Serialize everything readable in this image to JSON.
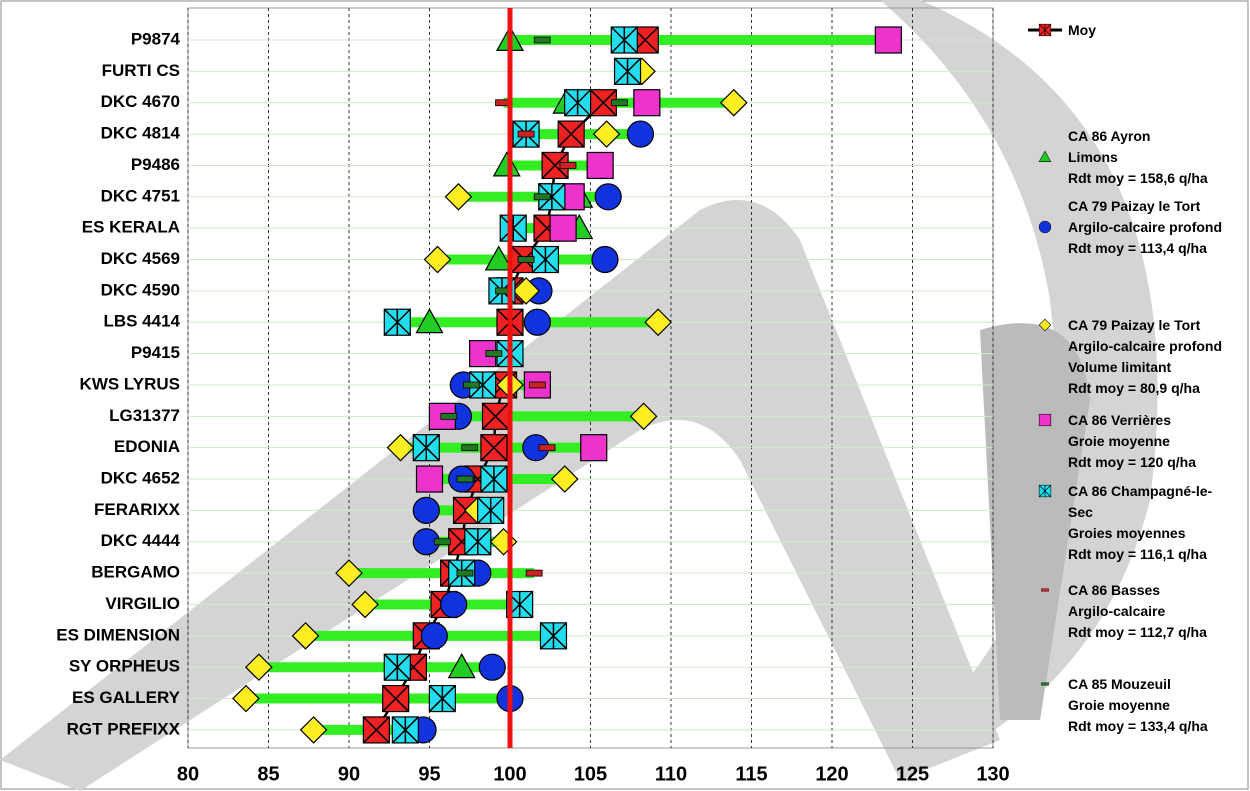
{
  "chart_data": {
    "type": "dotrange",
    "categories": [
      "P9874",
      "FURTI CS",
      "DKC 4670",
      "DKC 4814",
      "P9486",
      "DKC 4751",
      "ES KERALA",
      "DKC 4569",
      "DKC 4590",
      "LBS 4414",
      "P9415",
      "KWS LYRUS",
      "LG31377",
      "EDONIA",
      "DKC 4652",
      "FERARIXX",
      "DKC 4444",
      "BERGAMO",
      "VIRGILIO",
      "ES DIMENSION",
      "SY ORPHEUS",
      "ES GALLERY",
      "RGT PREFIXX"
    ],
    "xlim": [
      80,
      130
    ],
    "xticks": [
      80,
      85,
      90,
      95,
      100,
      105,
      110,
      115,
      120,
      125,
      130
    ],
    "grid": true,
    "reference": 100,
    "range_color": "#33ee22",
    "series": [
      {
        "name": "Moy",
        "marker": "xsquare",
        "color": "#ee2222",
        "line": true,
        "values": [
          108.4,
          null,
          105.8,
          103.8,
          102.8,
          102.6,
          102.3,
          100.9,
          100,
          100,
          null,
          99.6,
          99.1,
          99,
          98,
          97.3,
          97,
          96.5,
          95.9,
          94.8,
          94,
          92.9,
          91.7
        ]
      },
      {
        "name": "CA 86 Ayron\nLimons\nRdt moy = 158,6 q/ha",
        "marker": "triangle",
        "color": "#22cc22",
        "values": [
          100,
          null,
          103.5,
          null,
          99.8,
          104.3,
          104.3,
          99.3,
          null,
          95,
          null,
          null,
          null,
          null,
          null,
          null,
          null,
          null,
          null,
          null,
          97,
          null,
          null
        ]
      },
      {
        "name": "CA 79 Paizay le Tort\nArgilo-calcaire profond\nRdt moy = 113,4 q/ha",
        "marker": "circle",
        "color": "#1133dd",
        "values": [
          null,
          null,
          null,
          108.1,
          null,
          106.1,
          null,
          105.9,
          101.8,
          101.7,
          null,
          97.1,
          96.8,
          101.6,
          97,
          94.8,
          94.8,
          98,
          96.5,
          95.3,
          98.9,
          100,
          94.6
        ]
      },
      {
        "name": "CA 79 Paizay le Tort\nArgilo-calcaire profond\nVolume limitant\nRdt moy = 80,9 q/ha",
        "marker": "diamond",
        "color": "#ffee22",
        "values": [
          null,
          108.2,
          113.9,
          106,
          null,
          96.8,
          null,
          95.5,
          101,
          109.2,
          null,
          100,
          108.3,
          93.2,
          103.4,
          98,
          99.6,
          90,
          91,
          87.3,
          84.4,
          83.6,
          87.8
        ]
      },
      {
        "name": "CA 86 Verrières\nGroie moyenne\nRdt moy = 120 q/ha",
        "marker": "square",
        "color": "#ee33cc",
        "values": [
          123.5,
          null,
          108.5,
          null,
          105.6,
          103.8,
          103.3,
          null,
          null,
          null,
          98.3,
          101.7,
          95.8,
          105.2,
          95,
          null,
          null,
          null,
          null,
          null,
          null,
          null,
          null
        ]
      },
      {
        "name": "CA 86 Champagné-le-\nSec\nGroies moyennes\nRdt moy = 116,1 q/ha",
        "marker": "xcross",
        "color": "#22ddee",
        "values": [
          107.1,
          107.3,
          104.2,
          101,
          null,
          102.6,
          100.2,
          102.2,
          99.5,
          93,
          100,
          98.3,
          null,
          94.8,
          99,
          98.8,
          98,
          97,
          100.6,
          102.7,
          93,
          95.8,
          93.5
        ]
      },
      {
        "name": "CA 86 Basses\nArgilo-calcaire\nRdt moy = 112,7 q/ha",
        "marker": "dash",
        "color": "#cc2222",
        "values": [
          null,
          null,
          99.6,
          101,
          103.6,
          null,
          null,
          null,
          null,
          null,
          null,
          101.7,
          null,
          102.3,
          null,
          null,
          null,
          101.5,
          null,
          null,
          null,
          null,
          null
        ]
      },
      {
        "name": "CA 85 Mouzeuil\nGroie moyenne\nRdt moy = 133,4 q/ha",
        "marker": "dash",
        "color": "#227722",
        "values": [
          102,
          null,
          106.8,
          null,
          null,
          102,
          null,
          101,
          99.6,
          null,
          99,
          97.6,
          96.2,
          97.5,
          97.2,
          null,
          95.8,
          97.2,
          null,
          null,
          null,
          null,
          null
        ]
      }
    ]
  }
}
